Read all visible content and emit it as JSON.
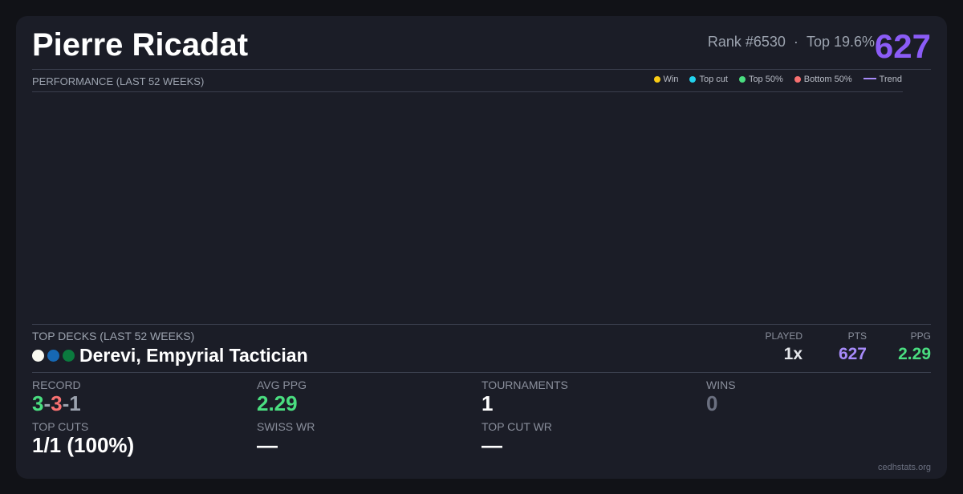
{
  "player": {
    "name": "Pierre Ricadat",
    "rank": "Rank #6530",
    "separator": "·",
    "top": "Top 19.6%",
    "score": "627"
  },
  "performance": {
    "title": "PERFORMANCE (LAST 52 WEEKS)",
    "legend": [
      {
        "label": "Win",
        "color": "#facc15"
      },
      {
        "label": "Top cut",
        "color": "#22d3ee"
      },
      {
        "label": "Top 50%",
        "color": "#4ade80"
      },
      {
        "label": "Bottom 50%",
        "color": "#f87171"
      },
      {
        "label": "Trend",
        "color": "#a78bfa"
      }
    ]
  },
  "decks": {
    "title": "TOP DECKS (LAST 52 WEEKS)",
    "headers": {
      "played": "PLAYED",
      "pts": "PTS",
      "ppg": "PPG"
    },
    "items": [
      {
        "name": "Derevi, Empyrial Tactician",
        "colors": [
          "#f8f8f0",
          "#1668b4",
          "#0b7a3e"
        ],
        "played": "1x",
        "pts": "627",
        "ppg": "2.29"
      }
    ]
  },
  "stats": {
    "record": {
      "label": "RECORD",
      "wins": "3",
      "losses": "3",
      "draws": "1",
      "sep": "-"
    },
    "avg_ppg": {
      "label": "AVG PPG",
      "value": "2.29"
    },
    "tournaments": {
      "label": "TOURNAMENTS",
      "value": "1"
    },
    "wins": {
      "label": "WINS",
      "value": "0"
    },
    "top_cuts": {
      "label": "TOP CUTS",
      "value": "1/1 (100%)"
    },
    "swiss_wr": {
      "label": "SWISS WR",
      "value": "—"
    },
    "top_cut_wr": {
      "label": "TOP CUT WR",
      "value": "—"
    }
  },
  "footer": "cedhstats.org"
}
